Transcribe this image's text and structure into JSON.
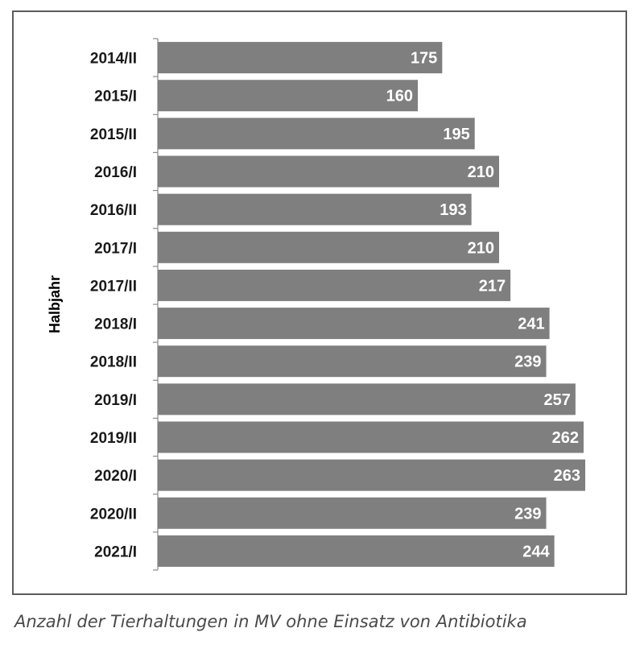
{
  "caption": "Anzahl der Tierhaltungen in MV ohne Einsatz von Antibiotika",
  "chart_data": {
    "type": "bar",
    "orientation": "horizontal",
    "ylabel": "Halbjahr",
    "xlabel": "",
    "categories": [
      "2014/II",
      "2015/I",
      "2015/II",
      "2016/I",
      "2016/II",
      "2017/I",
      "2017/II",
      "2018/I",
      "2018/II",
      "2019/I",
      "2019/II",
      "2020/I",
      "2020/II",
      "2021/I"
    ],
    "values": [
      175,
      160,
      195,
      210,
      193,
      210,
      217,
      241,
      239,
      257,
      262,
      263,
      239,
      244
    ],
    "data_labels": [
      "175",
      "160",
      "195",
      "210",
      "193",
      "210",
      "217",
      "241",
      "239",
      "257",
      "262",
      "263",
      "239",
      "244"
    ],
    "xlim": [
      0,
      263
    ],
    "grid": false,
    "legend": "none",
    "colors": {
      "bar": "#7f7f7f",
      "label": "#ffffff",
      "frame": "#5c5c5c"
    }
  }
}
